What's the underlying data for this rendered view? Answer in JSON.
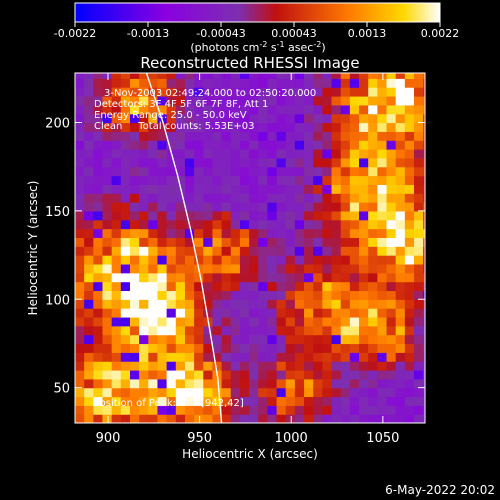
{
  "chart_data": {
    "type": "heatmap",
    "title": "Reconstructed RHESSI Image",
    "xlabel": "Heliocentric X (arcsec)",
    "ylabel": "Heliocentric Y (arcsec)",
    "xlim": [
      882,
      1073
    ],
    "ylim": [
      30,
      228
    ],
    "x_ticks": [
      900,
      950,
      1000,
      1050
    ],
    "y_ticks": [
      50,
      100,
      150,
      200
    ],
    "colorbar": {
      "ticks": [
        "-0.0022",
        "-0.0013",
        "-0.00043",
        "0.00043",
        "0.0013",
        "0.0022"
      ],
      "unit_base": "(photons cm",
      "unit_exp1": "-2",
      "unit_mid": " s",
      "unit_exp2": "-1",
      "unit_mid2": " asec",
      "unit_exp3": "-2",
      "unit_end": ")",
      "colors": [
        "#0000ff",
        "#8a00e0",
        "#7d2fb0",
        "#c01010",
        "#ff7a00",
        "#ffd800",
        "#ffffff"
      ]
    },
    "annotations": {
      "line1": "3-Nov-2003 02:49:24.000 to 02:50:20.000",
      "line2": "Detectors: 3F 4F 5F 6F 7F 8F, Att 1",
      "line3": "Energy Range: 25.0 - 50.0 keV",
      "line4": "Clean     Total counts: 5.53E+03",
      "peak_label": "Position of Peak:",
      "peak_value": "[942,42]"
    },
    "peak": [
      942,
      42
    ],
    "limb_points": [
      [
        921,
        228
      ],
      [
        930,
        200
      ],
      [
        938,
        170
      ],
      [
        945,
        140
      ],
      [
        951,
        110
      ],
      [
        956,
        80
      ],
      [
        960,
        55
      ],
      [
        962,
        30
      ]
    ],
    "hotspots": [
      {
        "x": 905,
        "y": 115,
        "intensity": 0.85,
        "spread": 22
      },
      {
        "x": 925,
        "y": 85,
        "intensity": 0.9,
        "spread": 18
      },
      {
        "x": 942,
        "y": 42,
        "intensity": 1.0,
        "spread": 16
      },
      {
        "x": 895,
        "y": 45,
        "intensity": 0.9,
        "spread": 16
      },
      {
        "x": 915,
        "y": 210,
        "intensity": 0.7,
        "spread": 15
      },
      {
        "x": 960,
        "y": 125,
        "intensity": 0.6,
        "spread": 14
      },
      {
        "x": 1050,
        "y": 210,
        "intensity": 0.95,
        "spread": 20
      },
      {
        "x": 1040,
        "y": 160,
        "intensity": 0.8,
        "spread": 20
      },
      {
        "x": 1060,
        "y": 130,
        "intensity": 0.85,
        "spread": 16
      },
      {
        "x": 1015,
        "y": 95,
        "intensity": 0.6,
        "spread": 18
      },
      {
        "x": 1045,
        "y": 80,
        "intensity": 0.75,
        "spread": 15
      },
      {
        "x": 1000,
        "y": 45,
        "intensity": 0.55,
        "spread": 14
      }
    ]
  },
  "timestamp": "6-May-2022 20:02"
}
